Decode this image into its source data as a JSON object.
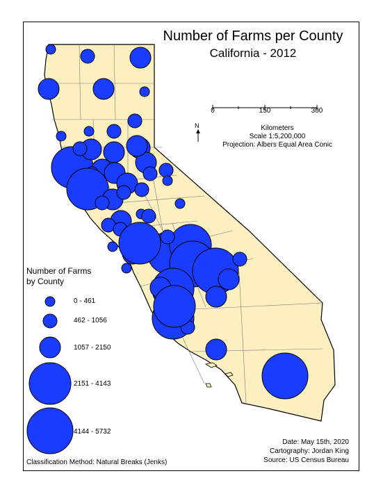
{
  "title": "Number of Farms per County",
  "subtitle": "California - 2012",
  "scale": {
    "ticks": [
      "0",
      "150",
      "300"
    ],
    "unit_label": "Kilometers",
    "ratio": "Scale 1:5,200,000",
    "projection": "Projection: Albers Equal Area Conic"
  },
  "north_arrow_label": "N",
  "legend": {
    "title": "Number of Farms",
    "subtitle": "by County",
    "classes": [
      {
        "label": "0 - 461",
        "level": 1
      },
      {
        "label": "462 - 1056",
        "level": 2
      },
      {
        "label": "1057 - 2150",
        "level": 3
      },
      {
        "label": "2151 - 4143",
        "level": 4
      },
      {
        "label": "4144 - 5732",
        "level": 5
      }
    ]
  },
  "classification": "Classification Method: Natural Breaks (Jenks)",
  "credits": {
    "date": "Date: May 15th, 2020",
    "cartography": "Cartography: Jordan King",
    "source": "Source: US Census Bureau"
  },
  "colors": {
    "land": "#fcefc0",
    "symbol": "#1a3cff",
    "border": "#000000",
    "county_lines": "#7a7a7a"
  },
  "symbol_levels": [
    1,
    2,
    3,
    3,
    1,
    3,
    1,
    1,
    2,
    4,
    3,
    3,
    2,
    3,
    3,
    2,
    3,
    2,
    4,
    3,
    3,
    3,
    2,
    2,
    3,
    2,
    2,
    1,
    2,
    3,
    2,
    1,
    2,
    2,
    3,
    4,
    4,
    1,
    3,
    4,
    5,
    5,
    2,
    1,
    4,
    3,
    4,
    3,
    2,
    3,
    2,
    5,
    3,
    4,
    1
  ]
}
